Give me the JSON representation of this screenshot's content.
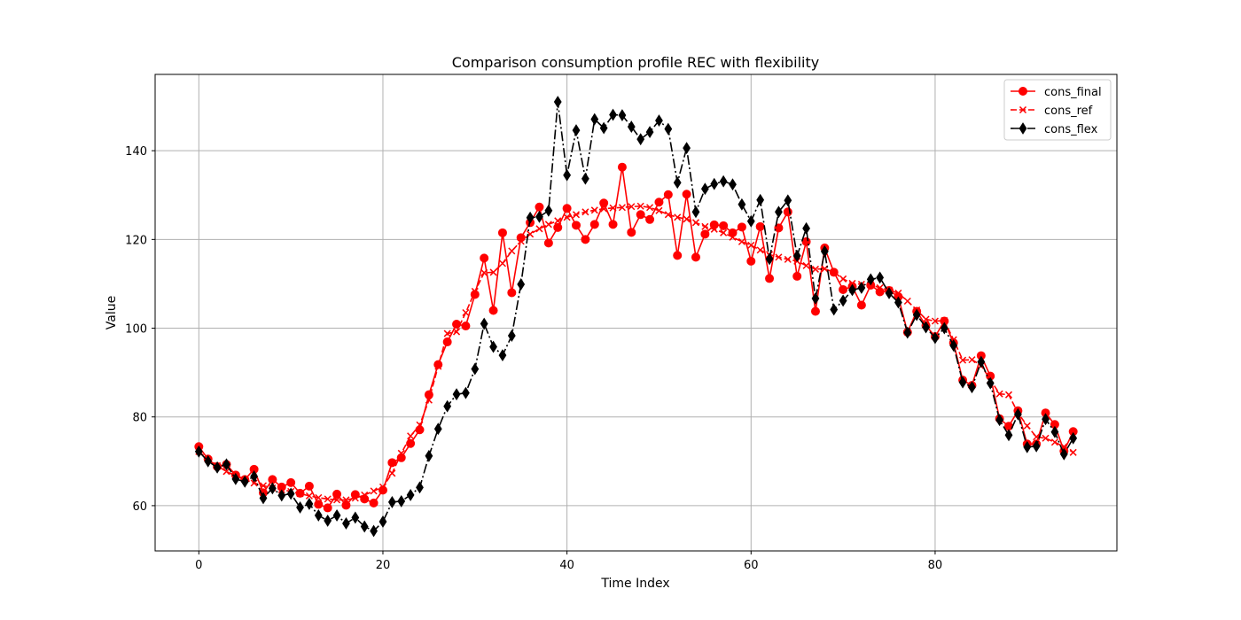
{
  "chart_data": {
    "type": "line",
    "title": "Comparison consumption profile REC with flexibility",
    "xlabel": "Time Index",
    "ylabel": "Value",
    "xlim": [
      -4.75,
      99.75
    ],
    "ylim": [
      49.8,
      157.2
    ],
    "xticks": [
      0,
      20,
      40,
      60,
      80
    ],
    "yticks": [
      60,
      80,
      100,
      120,
      140
    ],
    "grid": true,
    "legend_position": "top-right",
    "x": [
      0,
      1,
      2,
      3,
      4,
      5,
      6,
      7,
      8,
      9,
      10,
      11,
      12,
      13,
      14,
      15,
      16,
      17,
      18,
      19,
      20,
      21,
      22,
      23,
      24,
      25,
      26,
      27,
      28,
      29,
      30,
      31,
      32,
      33,
      34,
      35,
      36,
      37,
      38,
      39,
      40,
      41,
      42,
      43,
      44,
      45,
      46,
      47,
      48,
      49,
      50,
      51,
      52,
      53,
      54,
      55,
      56,
      57,
      58,
      59,
      60,
      61,
      62,
      63,
      64,
      65,
      66,
      67,
      68,
      69,
      70,
      71,
      72,
      73,
      74,
      75,
      76,
      77,
      78,
      79,
      80,
      81,
      82,
      83,
      84,
      85,
      86,
      87,
      88,
      89,
      90,
      91,
      92,
      93,
      94,
      95
    ],
    "series": [
      {
        "name": "cons_final",
        "color": "#ff0000",
        "line_style": "solid",
        "marker": "circle",
        "values": [
          73.3,
          70.5,
          68.8,
          69.3,
          66.9,
          65.9,
          68.2,
          62.9,
          65.9,
          64.2,
          65.2,
          62.8,
          64.4,
          60.3,
          59.5,
          62.6,
          60.1,
          62.5,
          61.5,
          60.6,
          63.5,
          69.7,
          70.8,
          74.0,
          77.1,
          85.0,
          91.8,
          96.9,
          100.9,
          100.5,
          107.6,
          115.8,
          104.0,
          121.5,
          108.0,
          120.4,
          123.8,
          127.3,
          119.2,
          122.7,
          127.0,
          123.2,
          120.0,
          123.4,
          128.2,
          123.4,
          136.3,
          121.6,
          125.6,
          124.5,
          128.4,
          130.1,
          116.4,
          130.2,
          116.0,
          121.2,
          123.3,
          123.1,
          121.5,
          122.8,
          115.1,
          122.9,
          111.2,
          122.6,
          126.2,
          111.7,
          119.5,
          103.8,
          118.1,
          112.6,
          108.7,
          109.4,
          105.2,
          109.7,
          108.2,
          108.5,
          107.1,
          99.1,
          103.8,
          100.6,
          98.1,
          101.6,
          96.7,
          88.3,
          87.1,
          93.8,
          89.2,
          79.6,
          77.9,
          81.4,
          73.9,
          73.9,
          80.9,
          78.3,
          72.3,
          76.7
        ]
      },
      {
        "name": "cons_ref",
        "color": "#ff0000",
        "line_style": "dashed",
        "marker": "x",
        "values": [
          72.2,
          70.4,
          69.0,
          67.7,
          66.7,
          65.9,
          65.1,
          64.5,
          64.0,
          63.6,
          63.2,
          62.7,
          62.2,
          61.8,
          61.5,
          61.3,
          61.3,
          61.7,
          62.4,
          63.3,
          64.2,
          67.3,
          71.8,
          75.7,
          78.2,
          83.8,
          91.4,
          98.8,
          99.2,
          103.5,
          108.3,
          112.5,
          112.6,
          114.6,
          117.4,
          119.6,
          121.2,
          122.4,
          123.4,
          124.2,
          125.0,
          125.6,
          126.2,
          126.6,
          126.9,
          127.1,
          127.2,
          127.4,
          127.5,
          127.2,
          126.5,
          125.6,
          125.0,
          124.6,
          123.8,
          122.9,
          122.3,
          121.5,
          120.5,
          119.5,
          118.7,
          117.6,
          116.6,
          116.0,
          115.5,
          115.1,
          114.1,
          113.3,
          113.4,
          112.6,
          111.1,
          110.1,
          109.9,
          109.8,
          109.1,
          108.6,
          107.9,
          106.1,
          104.1,
          102.0,
          101.6,
          101.7,
          97.4,
          92.8,
          92.9,
          91.6,
          88.4,
          85.2,
          85.0,
          80.9,
          78.0,
          75.5,
          75.2,
          74.3,
          73.3,
          72.0
        ]
      },
      {
        "name": "cons_flex",
        "color": "#000000",
        "line_style": "dashdot",
        "marker": "thin_diamond",
        "values": [
          72.2,
          70.0,
          68.6,
          69.3,
          66.0,
          65.4,
          66.6,
          61.7,
          63.9,
          62.3,
          62.7,
          59.6,
          60.4,
          57.8,
          56.6,
          57.8,
          56.0,
          57.3,
          55.3,
          54.3,
          56.4,
          60.8,
          61.0,
          62.4,
          64.1,
          71.2,
          77.3,
          82.4,
          85.1,
          85.4,
          90.8,
          101.0,
          95.8,
          93.9,
          98.3,
          109.9,
          124.9,
          125.1,
          126.5,
          151.0,
          134.5,
          144.6,
          133.7,
          147.1,
          145.1,
          148.1,
          148.0,
          145.4,
          142.6,
          144.2,
          146.8,
          144.9,
          132.8,
          140.6,
          126.2,
          131.4,
          132.5,
          133.1,
          132.4,
          127.9,
          124.1,
          128.9,
          115.6,
          126.2,
          128.8,
          116.3,
          122.5,
          106.7,
          117.3,
          104.2,
          106.2,
          108.6,
          109.1,
          111.0,
          111.4,
          107.9,
          105.8,
          99.0,
          103.0,
          100.2,
          97.8,
          100.0,
          96.1,
          87.8,
          86.7,
          92.4,
          87.6,
          79.3,
          75.9,
          80.6,
          73.2,
          73.4,
          79.5,
          76.6,
          71.6,
          75.2
        ]
      }
    ]
  }
}
